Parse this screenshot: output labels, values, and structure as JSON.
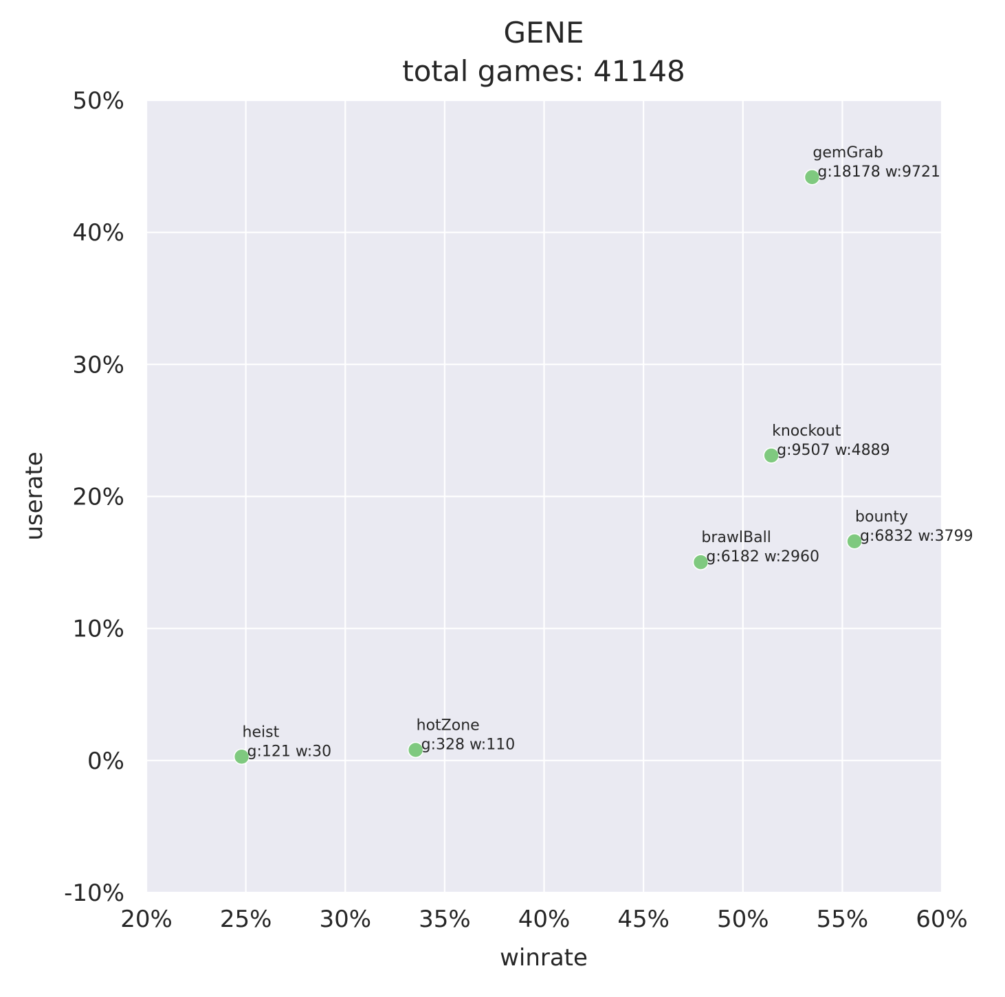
{
  "chart_data": {
    "type": "scatter",
    "title": "GENE",
    "subtitle": "total games: 41148",
    "xlabel": "winrate",
    "ylabel": "userate",
    "xlim": [
      0.2,
      0.6
    ],
    "ylim": [
      -0.1,
      0.5
    ],
    "x_ticks": [
      0.2,
      0.25,
      0.3,
      0.35,
      0.4,
      0.45,
      0.5,
      0.55,
      0.6
    ],
    "y_ticks": [
      -0.1,
      0.0,
      0.1,
      0.2,
      0.3,
      0.4,
      0.5
    ],
    "x_tick_labels": [
      "20%",
      "25%",
      "30%",
      "35%",
      "40%",
      "45%",
      "50%",
      "55%",
      "60%"
    ],
    "y_tick_labels": [
      "-10%",
      "0%",
      "10%",
      "20%",
      "30%",
      "40%",
      "50%"
    ],
    "grid": true,
    "point_color": "#7fc97f",
    "background_color": "#eaeaf2",
    "points": [
      {
        "label": "gemGrab",
        "info": "g:18178 w:9721",
        "x": 0.5348,
        "y": 0.4418
      },
      {
        "label": "knockout",
        "info": "g:9507 w:4889",
        "x": 0.5143,
        "y": 0.231
      },
      {
        "label": "bounty",
        "info": "g:6832 w:3799",
        "x": 0.5561,
        "y": 0.166
      },
      {
        "label": "brawlBall",
        "info": "g:6182 w:2960",
        "x": 0.4788,
        "y": 0.1502
      },
      {
        "label": "hotZone",
        "info": "g:328 w:110",
        "x": 0.3354,
        "y": 0.008
      },
      {
        "label": "heist",
        "info": "g:121 w:30",
        "x": 0.2479,
        "y": 0.0029
      }
    ]
  }
}
